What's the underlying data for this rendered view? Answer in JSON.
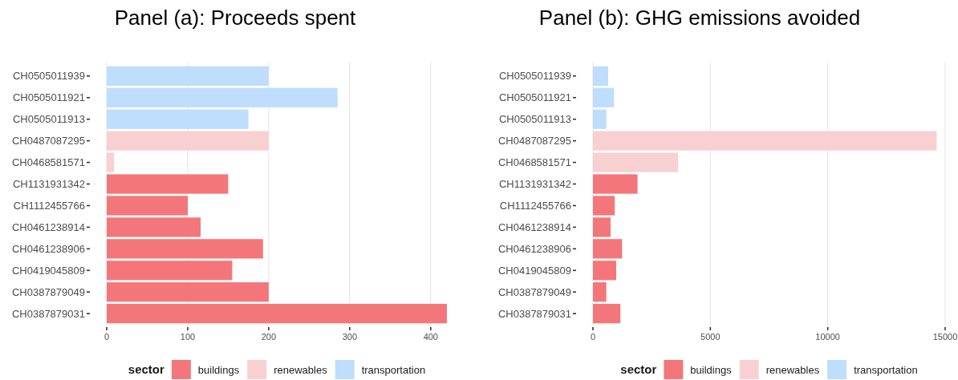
{
  "chart_data": [
    {
      "type": "bar",
      "title": "Panel (a): Proceeds spent",
      "orientation": "horizontal",
      "stacked": true,
      "categories": [
        "CH0505011939",
        "CH0505011921",
        "CH0505011913",
        "CH0487087295",
        "CH0468581571",
        "CH1131931342",
        "CH1112455766",
        "CH0461238914",
        "CH0461238906",
        "CH0419045809",
        "CH0387879049",
        "CH0387879031"
      ],
      "series": [
        {
          "name": "buildings",
          "color": "#f3777a",
          "values": [
            null,
            null,
            null,
            null,
            null,
            150,
            100,
            116,
            193,
            155,
            200,
            420
          ]
        },
        {
          "name": "renewables",
          "color": "#f9d0d2",
          "values": [
            null,
            null,
            null,
            200,
            9,
            null,
            null,
            null,
            null,
            null,
            null,
            null
          ]
        },
        {
          "name": "transportation",
          "color": "#bfddfd",
          "values": [
            200,
            285,
            175,
            null,
            null,
            null,
            null,
            null,
            null,
            null,
            null,
            null
          ]
        }
      ],
      "xlim": [
        0,
        420
      ],
      "xticks": [
        0,
        100,
        200,
        300,
        400
      ],
      "grid": "x",
      "legend": "bottom",
      "legend_title": "sector"
    },
    {
      "type": "bar",
      "title": "Panel (b): GHG emissions avoided",
      "orientation": "horizontal",
      "stacked": true,
      "categories": [
        "CH0505011939",
        "CH0505011921",
        "CH0505011913",
        "CH0487087295",
        "CH0468581571",
        "CH1131931342",
        "CH1112455766",
        "CH0461238914",
        "CH0461238906",
        "CH0419045809",
        "CH0387879049",
        "CH0387879031"
      ],
      "series": [
        {
          "name": "buildings",
          "color": "#f3777a",
          "values": [
            null,
            null,
            null,
            null,
            null,
            1900,
            930,
            750,
            1240,
            990,
            570,
            1170
          ]
        },
        {
          "name": "renewables",
          "color": "#f9d0d2",
          "values": [
            null,
            null,
            null,
            14640,
            3630,
            null,
            null,
            null,
            null,
            null,
            null,
            null
          ]
        },
        {
          "name": "transportation",
          "color": "#bfddfd",
          "values": [
            650,
            900,
            570,
            null,
            null,
            null,
            null,
            null,
            null,
            null,
            null,
            null
          ]
        }
      ],
      "xlim": [
        0,
        15000
      ],
      "xticks": [
        0,
        5000,
        10000,
        15000
      ],
      "grid": "x",
      "legend": "bottom",
      "legend_title": "sector"
    }
  ]
}
